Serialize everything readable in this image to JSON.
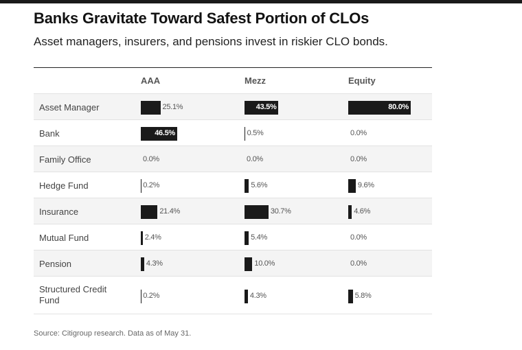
{
  "title": "Banks Gravitate Toward Safest Portion of CLOs",
  "subtitle": "Asset managers, insurers, and pensions invest in riskier CLO bonds.",
  "source": "Source: Citigroup research. Data as of May 31.",
  "chart_data": {
    "type": "table",
    "title": "Banks Gravitate Toward Safest Portion of CLOs",
    "subtitle": "Asset managers, insurers, and pensions invest in riskier CLO bonds.",
    "columns": [
      "AAA",
      "Mezz",
      "Equity"
    ],
    "rows": [
      {
        "label": "Asset Manager",
        "values": [
          25.1,
          43.5,
          80.0
        ],
        "labels": [
          "25.1%",
          "43.5%",
          "80.0%"
        ]
      },
      {
        "label": "Bank",
        "values": [
          46.5,
          0.5,
          0.0
        ],
        "labels": [
          "46.5%",
          "0.5%",
          "0.0%"
        ]
      },
      {
        "label": "Family Office",
        "values": [
          0.0,
          0.0,
          0.0
        ],
        "labels": [
          "0.0%",
          "0.0%",
          "0.0%"
        ]
      },
      {
        "label": "Hedge Fund",
        "values": [
          0.2,
          5.6,
          9.6
        ],
        "labels": [
          "0.2%",
          "5.6%",
          "9.6%"
        ]
      },
      {
        "label": "Insurance",
        "values": [
          21.4,
          30.7,
          4.6
        ],
        "labels": [
          "21.4%",
          "30.7%",
          "4.6%"
        ]
      },
      {
        "label": "Mutual Fund",
        "values": [
          2.4,
          5.4,
          0.0
        ],
        "labels": [
          "2.4%",
          "5.4%",
          "0.0%"
        ]
      },
      {
        "label": "Pension",
        "values": [
          4.3,
          10.0,
          0.0
        ],
        "labels": [
          "4.3%",
          "10.0%",
          "0.0%"
        ]
      },
      {
        "label": "Structured Credit Fund",
        "values": [
          0.2,
          4.3,
          5.8
        ],
        "labels": [
          "0.2%",
          "4.3%",
          "5.8%"
        ]
      }
    ],
    "value_range": [
      0,
      80
    ],
    "bar_color": "#1a1a1a",
    "shaded_row_color": "#f4f4f4"
  }
}
